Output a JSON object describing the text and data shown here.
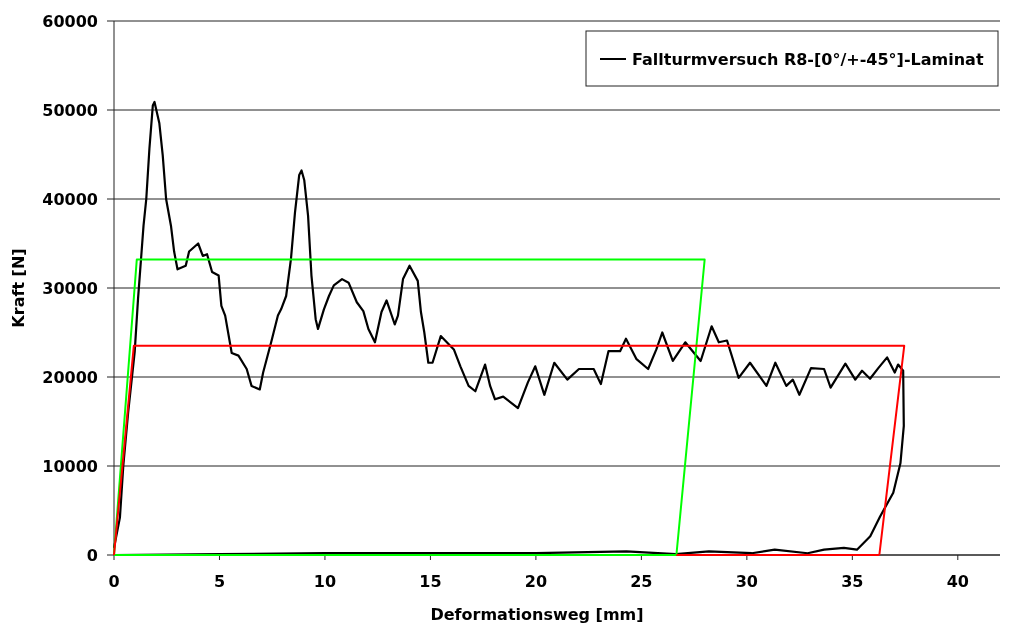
{
  "chart_data": {
    "type": "line",
    "xlabel": "Deformationsweg [mm]",
    "ylabel": "Kraft [N]",
    "xlim": [
      0,
      42
    ],
    "ylim": [
      0,
      60000
    ],
    "xticks": [
      0,
      5,
      10,
      15,
      20,
      25,
      30,
      35,
      40
    ],
    "yticks": [
      0,
      10000,
      20000,
      30000,
      40000,
      50000,
      60000
    ],
    "grid": "y",
    "legend": "top right",
    "marker": "none",
    "line_style": "solid",
    "series": [
      {
        "name": "Fallturmversuch R8-[0°/+-45°]-Laminat",
        "color": "#000000",
        "x": [
          0,
          0.28,
          0.44,
          0.67,
          0.98,
          1.14,
          1.4,
          1.53,
          1.68,
          1.84,
          1.92,
          2.15,
          2.31,
          2.47,
          2.7,
          2.85,
          3.01,
          3.4,
          3.56,
          3.99,
          4.21,
          4.41,
          4.65,
          4.96,
          5.09,
          5.27,
          5.58,
          5.9,
          6.29,
          6.52,
          6.91,
          7.07,
          7.45,
          7.77,
          7.92,
          8.16,
          8.39,
          8.58,
          8.78,
          8.89,
          9.02,
          9.2,
          9.36,
          9.56,
          9.67,
          9.95,
          10.19,
          10.42,
          10.81,
          11.12,
          11.51,
          11.82,
          12.06,
          12.37,
          12.68,
          12.92,
          13.31,
          13.46,
          13.7,
          14.01,
          14.4,
          14.55,
          14.71,
          14.9,
          15.1,
          15.49,
          16.11,
          16.42,
          16.81,
          17.13,
          17.59,
          17.83,
          18.06,
          18.45,
          19.15,
          19.62,
          19.97,
          20.4,
          20.87,
          21.49,
          22.04,
          22.74,
          23.08,
          23.44,
          23.99,
          24.27,
          24.77,
          25.32,
          25.71,
          25.99,
          26.49,
          27.08,
          27.81,
          28.33,
          28.67,
          29.06,
          29.61,
          30.15,
          30.93,
          31.35,
          31.87,
          32.18,
          32.49,
          33.04,
          33.66,
          33.97,
          34.67,
          35.14,
          35.46,
          35.84,
          36.23,
          36.65,
          37.01,
          37.17,
          37.41,
          37.44,
          37.28,
          36.94,
          36.31,
          35.85,
          35.22,
          34.6,
          33.66,
          32.88,
          31.32,
          30.23,
          28.2,
          26.63,
          24.29,
          20,
          15,
          10,
          5,
          0
        ],
        "values": [
          800,
          4200,
          10000,
          16000,
          22800,
          28800,
          37000,
          40000,
          45700,
          50500,
          50900,
          48500,
          44900,
          40000,
          37000,
          34100,
          32100,
          32500,
          34100,
          35000,
          33600,
          33800,
          31800,
          31400,
          28000,
          26900,
          22700,
          22400,
          20900,
          19000,
          18600,
          20500,
          23900,
          26900,
          27600,
          29100,
          33300,
          38500,
          42700,
          43200,
          42100,
          38100,
          31400,
          26500,
          25400,
          27600,
          29100,
          30300,
          31000,
          30600,
          28400,
          27400,
          25400,
          23900,
          27300,
          28600,
          25900,
          26900,
          31000,
          32500,
          30800,
          27300,
          25000,
          21600,
          21600,
          24600,
          23100,
          21200,
          19000,
          18400,
          21400,
          19000,
          17500,
          17800,
          16500,
          19400,
          21200,
          18000,
          21600,
          19700,
          20900,
          20900,
          19200,
          22900,
          22900,
          24300,
          22000,
          20900,
          23100,
          25000,
          21800,
          23900,
          21800,
          25700,
          23900,
          24100,
          19900,
          21600,
          19000,
          21600,
          19000,
          19700,
          18000,
          21000,
          20900,
          18800,
          21500,
          19700,
          20700,
          19800,
          21000,
          22200,
          20500,
          21400,
          20700,
          14500,
          10300,
          7000,
          4300,
          2100,
          600,
          800,
          600,
          200,
          600,
          200,
          400,
          100,
          400,
          200,
          200,
          200,
          100,
          0
        ]
      },
      {
        "color": "#00ff00",
        "x": [
          0,
          1.08,
          28.0,
          26.66
        ],
        "values": [
          0,
          33200,
          33200,
          0
        ]
      },
      {
        "color": "#00ff00",
        "x": [
          0,
          26.66
        ],
        "values": [
          0,
          0
        ]
      },
      {
        "color": "#ff0000",
        "x": [
          0,
          0.94,
          37.46,
          36.28
        ],
        "values": [
          0,
          23500,
          23500,
          0
        ]
      },
      {
        "color": "#ff0000",
        "x": [
          26.66,
          36.28
        ],
        "values": [
          0,
          0
        ]
      }
    ]
  }
}
